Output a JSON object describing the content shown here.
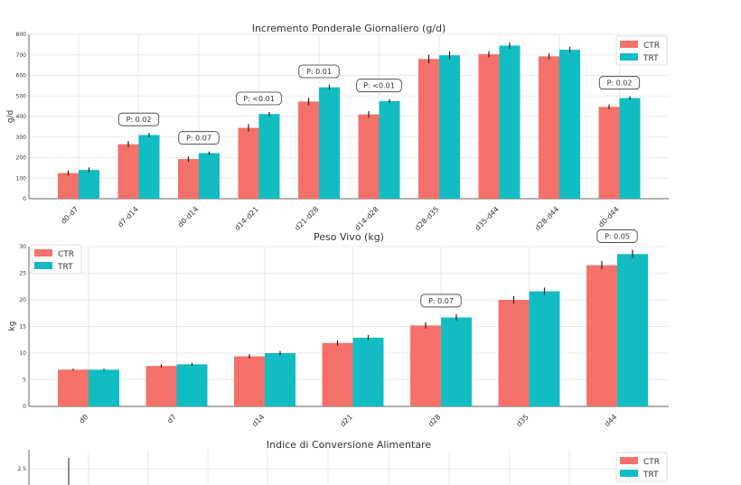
{
  "colors": {
    "CTR": "#f4716a",
    "TRT": "#11bcc3"
  },
  "chart_data": [
    {
      "type": "bar",
      "title": "Incremento Ponderale Giornaliero (g/d)",
      "xlabel": "",
      "ylabel": "g/d",
      "ylim": [
        0,
        800
      ],
      "yticks": [
        0,
        100,
        200,
        300,
        400,
        500,
        600,
        700,
        800
      ],
      "grid": true,
      "legend": "top-right",
      "categories": [
        "d0-d7",
        "d7-d14",
        "d0-d14",
        "d14-d21",
        "d21-d28",
        "d14-d28",
        "d28-d35",
        "d35-d44",
        "d28-d44",
        "d0-d44"
      ],
      "series": [
        {
          "name": "CTR",
          "values": [
            125,
            265,
            193,
            345,
            473,
            410,
            680,
            703,
            693,
            447
          ],
          "errors": [
            12,
            15,
            13,
            18,
            18,
            16,
            20,
            15,
            14,
            12
          ]
        },
        {
          "name": "TRT",
          "values": [
            140,
            310,
            222,
            412,
            542,
            475,
            698,
            745,
            725,
            490
          ],
          "errors": [
            12,
            10,
            8,
            10,
            12,
            10,
            20,
            15,
            14,
            8
          ]
        }
      ],
      "annotations": [
        null,
        "P: 0.02",
        "P: 0.07",
        "P: <0.01",
        "P: 0.01",
        "P: <0.01",
        null,
        null,
        null,
        "P: 0.02"
      ]
    },
    {
      "type": "bar",
      "title": "Peso Vivo (kg)",
      "xlabel": "",
      "ylabel": "kg",
      "ylim": [
        0,
        30
      ],
      "yticks": [
        0,
        5,
        10,
        15,
        20,
        25,
        30
      ],
      "grid": true,
      "legend": "top-left",
      "categories": [
        "d0",
        "d7",
        "d14",
        "d21",
        "d28",
        "d35",
        "d44"
      ],
      "series": [
        {
          "name": "CTR",
          "values": [
            6.9,
            7.6,
            9.4,
            11.9,
            15.2,
            20.0,
            26.5
          ],
          "errors": [
            0.2,
            0.3,
            0.4,
            0.5,
            0.6,
            0.7,
            0.8
          ]
        },
        {
          "name": "TRT",
          "values": [
            6.9,
            7.9,
            10.0,
            12.9,
            16.7,
            21.6,
            28.6
          ],
          "errors": [
            0.2,
            0.3,
            0.4,
            0.5,
            0.6,
            0.7,
            0.8
          ]
        }
      ],
      "annotations": [
        null,
        null,
        null,
        null,
        "P: 0.07",
        null,
        "P: 0.05"
      ]
    },
    {
      "type": "bar",
      "title": "Indice di Conversione Alimentare",
      "yticks": [
        2.5
      ],
      "grid": true,
      "legend": "top-right",
      "series": [
        {
          "name": "CTR"
        },
        {
          "name": "TRT"
        }
      ]
    }
  ]
}
